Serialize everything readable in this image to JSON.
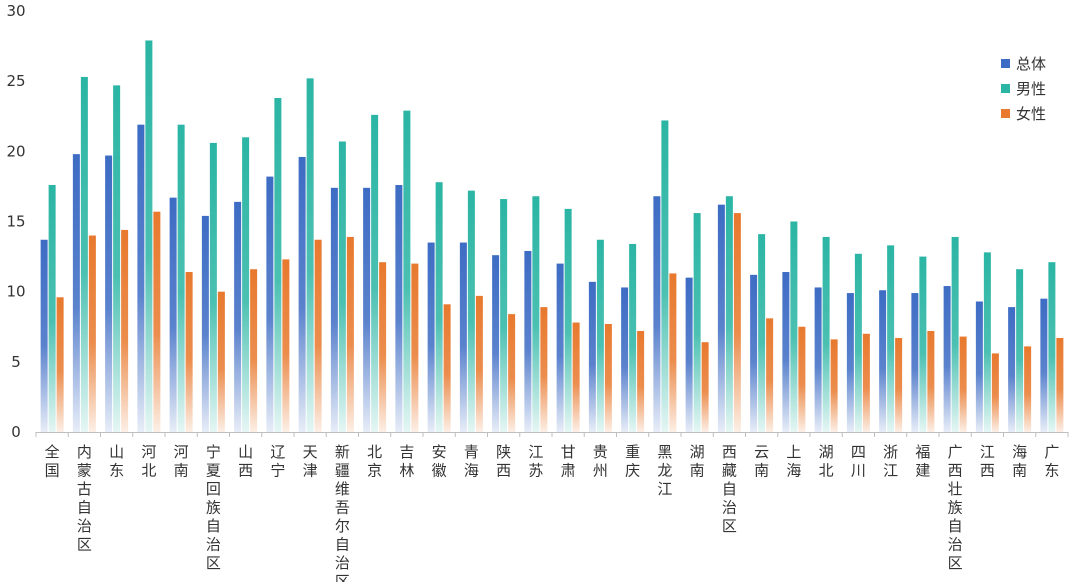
{
  "chart_data": {
    "type": "bar",
    "title": "",
    "xlabel": "",
    "ylabel": "",
    "ylim": [
      0,
      30
    ],
    "yticks": [
      0,
      5,
      10,
      15,
      20,
      25,
      30
    ],
    "grid": false,
    "legend_position": "right",
    "categories": [
      "全国",
      "内蒙古自治区",
      "山东",
      "河北",
      "河南",
      "宁夏回族自治区",
      "山西",
      "辽宁",
      "天津",
      "新疆维吾尔自治区",
      "北京",
      "吉林",
      "安徽",
      "青海",
      "陕西",
      "江苏",
      "甘肃",
      "贵州",
      "重庆",
      "黑龙江",
      "湖南",
      "西藏自治区",
      "云南",
      "上海",
      "湖北",
      "四川",
      "浙江",
      "福建",
      "广西壮族自治区",
      "江西",
      "海南",
      "广东"
    ],
    "series": [
      {
        "name": "总体",
        "color": "#3d6cc4",
        "values": [
          13.7,
          19.8,
          19.7,
          21.9,
          16.7,
          15.4,
          16.4,
          18.2,
          19.6,
          17.4,
          17.4,
          17.6,
          13.5,
          13.5,
          12.6,
          12.9,
          12.0,
          10.7,
          10.3,
          16.8,
          11.0,
          16.2,
          11.2,
          11.4,
          10.3,
          9.9,
          10.1,
          9.9,
          10.4,
          9.3,
          8.9,
          9.5
        ]
      },
      {
        "name": "男性",
        "color": "#2bb5a4",
        "values": [
          17.6,
          25.3,
          24.7,
          27.9,
          21.9,
          20.6,
          21.0,
          23.8,
          25.2,
          20.7,
          22.6,
          22.9,
          17.8,
          17.2,
          16.6,
          16.8,
          15.9,
          13.7,
          13.4,
          22.2,
          15.6,
          16.8,
          14.1,
          15.0,
          13.9,
          12.7,
          13.3,
          12.5,
          13.9,
          12.8,
          11.6,
          12.1
        ]
      },
      {
        "name": "女性",
        "color": "#e8792e",
        "values": [
          9.6,
          14.0,
          14.4,
          15.7,
          11.4,
          10.0,
          11.6,
          12.3,
          13.7,
          13.9,
          12.1,
          12.0,
          9.1,
          9.7,
          8.4,
          8.9,
          7.8,
          7.7,
          7.2,
          11.3,
          6.4,
          15.6,
          8.1,
          7.5,
          6.6,
          7.0,
          6.7,
          7.2,
          6.8,
          5.6,
          6.1,
          6.7
        ]
      }
    ]
  }
}
